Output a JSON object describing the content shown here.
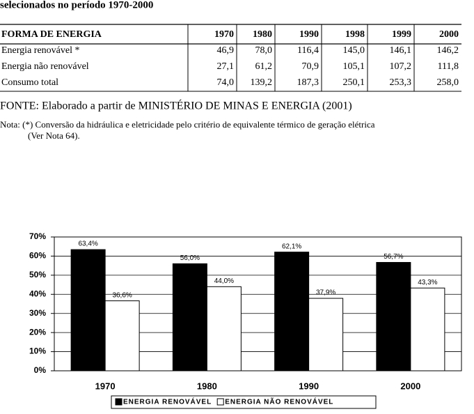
{
  "header": {
    "title": "selecionados no período 1970-2000"
  },
  "table": {
    "columns": [
      "FORMA DE ENERGIA",
      "1970",
      "1980",
      "1990",
      "1998",
      "1999",
      "2000"
    ],
    "rows": [
      [
        "Energia renovável *",
        "46,9",
        "78,0",
        "116,4",
        "145,0",
        "146,1",
        "146,2"
      ],
      [
        "Energia não renovável",
        "27,1",
        "61,2",
        "70,9",
        "105,1",
        "107,2",
        "111,8"
      ],
      [
        "Consumo total",
        "74,0",
        "139,2",
        "187,3",
        "250,1",
        "253,3",
        "258,0"
      ]
    ]
  },
  "source": "FONTE: Elaborado a partir de MINISTÉRIO DE MINAS E ENERGIA (2001)",
  "note": [
    "Nota: (*) Conversão da hidráulica e eletricidade pelo critério de equivalente térmico de geração elétrica",
    "(Ver Nota 64)."
  ],
  "chart_data": {
    "type": "bar",
    "categories": [
      "1970",
      "1980",
      "1990",
      "2000"
    ],
    "series": [
      {
        "name": "ENERGIA RENOVÁVEL",
        "color": "#000000",
        "values": [
          63.4,
          56.0,
          62.1,
          56.7
        ],
        "value_labels": [
          "63,4%",
          "56,0%",
          "62,1%",
          "56,7%"
        ]
      },
      {
        "name": "ENERGIA NÃO RENOVÁVEL",
        "color": "#ffffff",
        "values": [
          36.6,
          44.0,
          37.9,
          43.3
        ],
        "value_labels": [
          "36,6%",
          "44,0%",
          "37,9%",
          "43,3%"
        ]
      }
    ],
    "ylim": [
      0,
      70
    ],
    "yticks": [
      {
        "value": 0,
        "label": "0%"
      },
      {
        "value": 10,
        "label": "10%"
      },
      {
        "value": 20,
        "label": "20%"
      },
      {
        "value": 30,
        "label": "30%"
      },
      {
        "value": 40,
        "label": "40%"
      },
      {
        "value": 50,
        "label": "50%"
      },
      {
        "value": 60,
        "label": "60%"
      },
      {
        "value": 70,
        "label": "70%"
      }
    ],
    "grid": true,
    "legend": "bottom"
  }
}
